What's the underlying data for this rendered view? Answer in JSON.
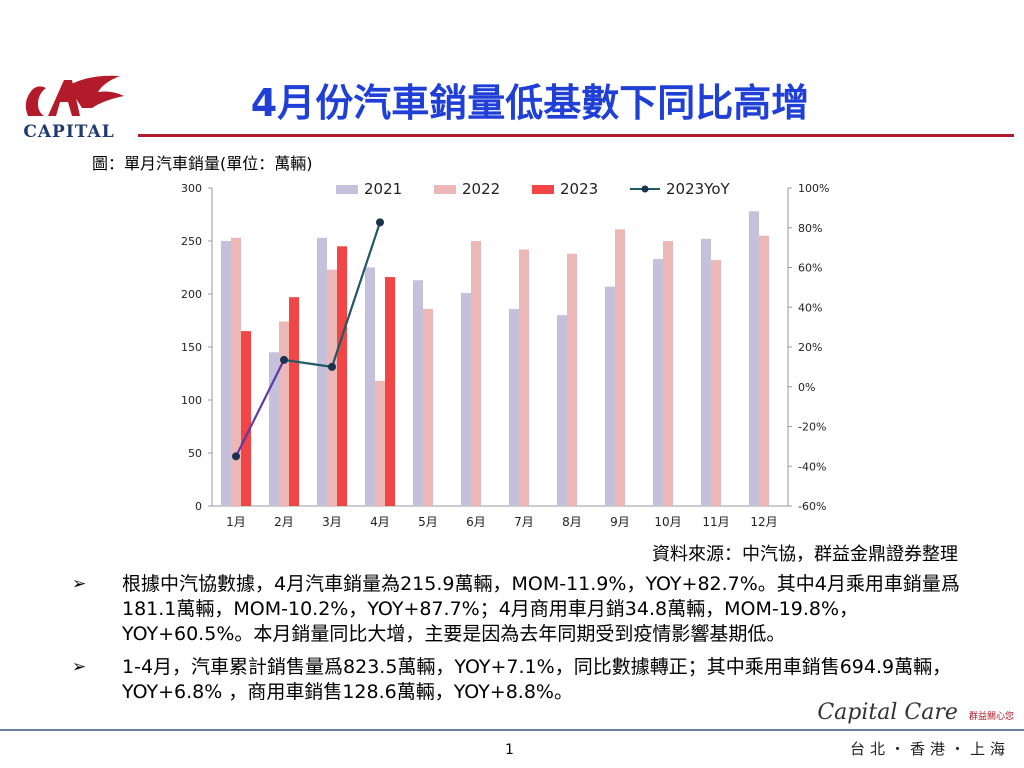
{
  "logo": {
    "text": "CAPITAL"
  },
  "title": "4月份汽車銷量低基數下同比高增",
  "figure_caption": "圖：單月汽車銷量(單位：萬輛)",
  "source": "資料來源：中汽協，群益金鼎證券整理",
  "bullets": [
    "根據中汽協數據，4月汽車銷量為215.9萬輛，MOM-11.9%，YOY+82.7%。其中4月乘用車銷量爲181.1萬輛，MOM-10.2%，YOY+87.7%；4月商用車月銷34.8萬輛，MOM-19.8%，YOY+60.5%。本月銷量同比大增，主要是因為去年同期受到疫情影響基期低。",
    "1-4月，汽車累計銷售量爲823.5萬輛，YOY+7.1%，同比數據轉正；其中乘用車銷售694.9萬輛，YOY+6.8% ，商用車銷售128.6萬輛，YOY+8.8%。"
  ],
  "page_number": "1",
  "brand": {
    "script": "Capital Care",
    "sub": "群益關心您",
    "cities": "台北・香港・上海"
  },
  "colors": {
    "title": "#1f3fd6",
    "rule": "#b31a2a",
    "s2021": "#c5c0dc",
    "s2022": "#ebb7b7",
    "s2023": "#f24545",
    "yoy": "#1e5a63"
  },
  "chart_data": {
    "type": "bar",
    "categories": [
      "1月",
      "2月",
      "3月",
      "4月",
      "5月",
      "6月",
      "7月",
      "8月",
      "9月",
      "10月",
      "11月",
      "12月"
    ],
    "series": [
      {
        "name": "2021",
        "values": [
          250,
          145,
          253,
          225,
          213,
          201,
          186,
          180,
          207,
          233,
          252,
          278
        ]
      },
      {
        "name": "2022",
        "values": [
          253,
          174,
          223,
          118,
          186,
          250,
          242,
          238,
          261,
          250,
          232,
          255
        ]
      },
      {
        "name": "2023",
        "values": [
          165,
          197,
          245,
          216,
          null,
          null,
          null,
          null,
          null,
          null,
          null,
          null
        ]
      }
    ],
    "line_series": {
      "name": "2023YoY",
      "values": [
        -35,
        13.5,
        10,
        82.7
      ]
    },
    "ylim": [
      0,
      300
    ],
    "yticks": [
      "0",
      "50",
      "100",
      "150",
      "200",
      "250",
      "300"
    ],
    "y2lim": [
      -60,
      100
    ],
    "y2ticks": [
      "-60%",
      "-40%",
      "-20%",
      "0%",
      "20%",
      "40%",
      "60%",
      "80%",
      "100%"
    ],
    "legend_position": "top",
    "grid": false
  }
}
